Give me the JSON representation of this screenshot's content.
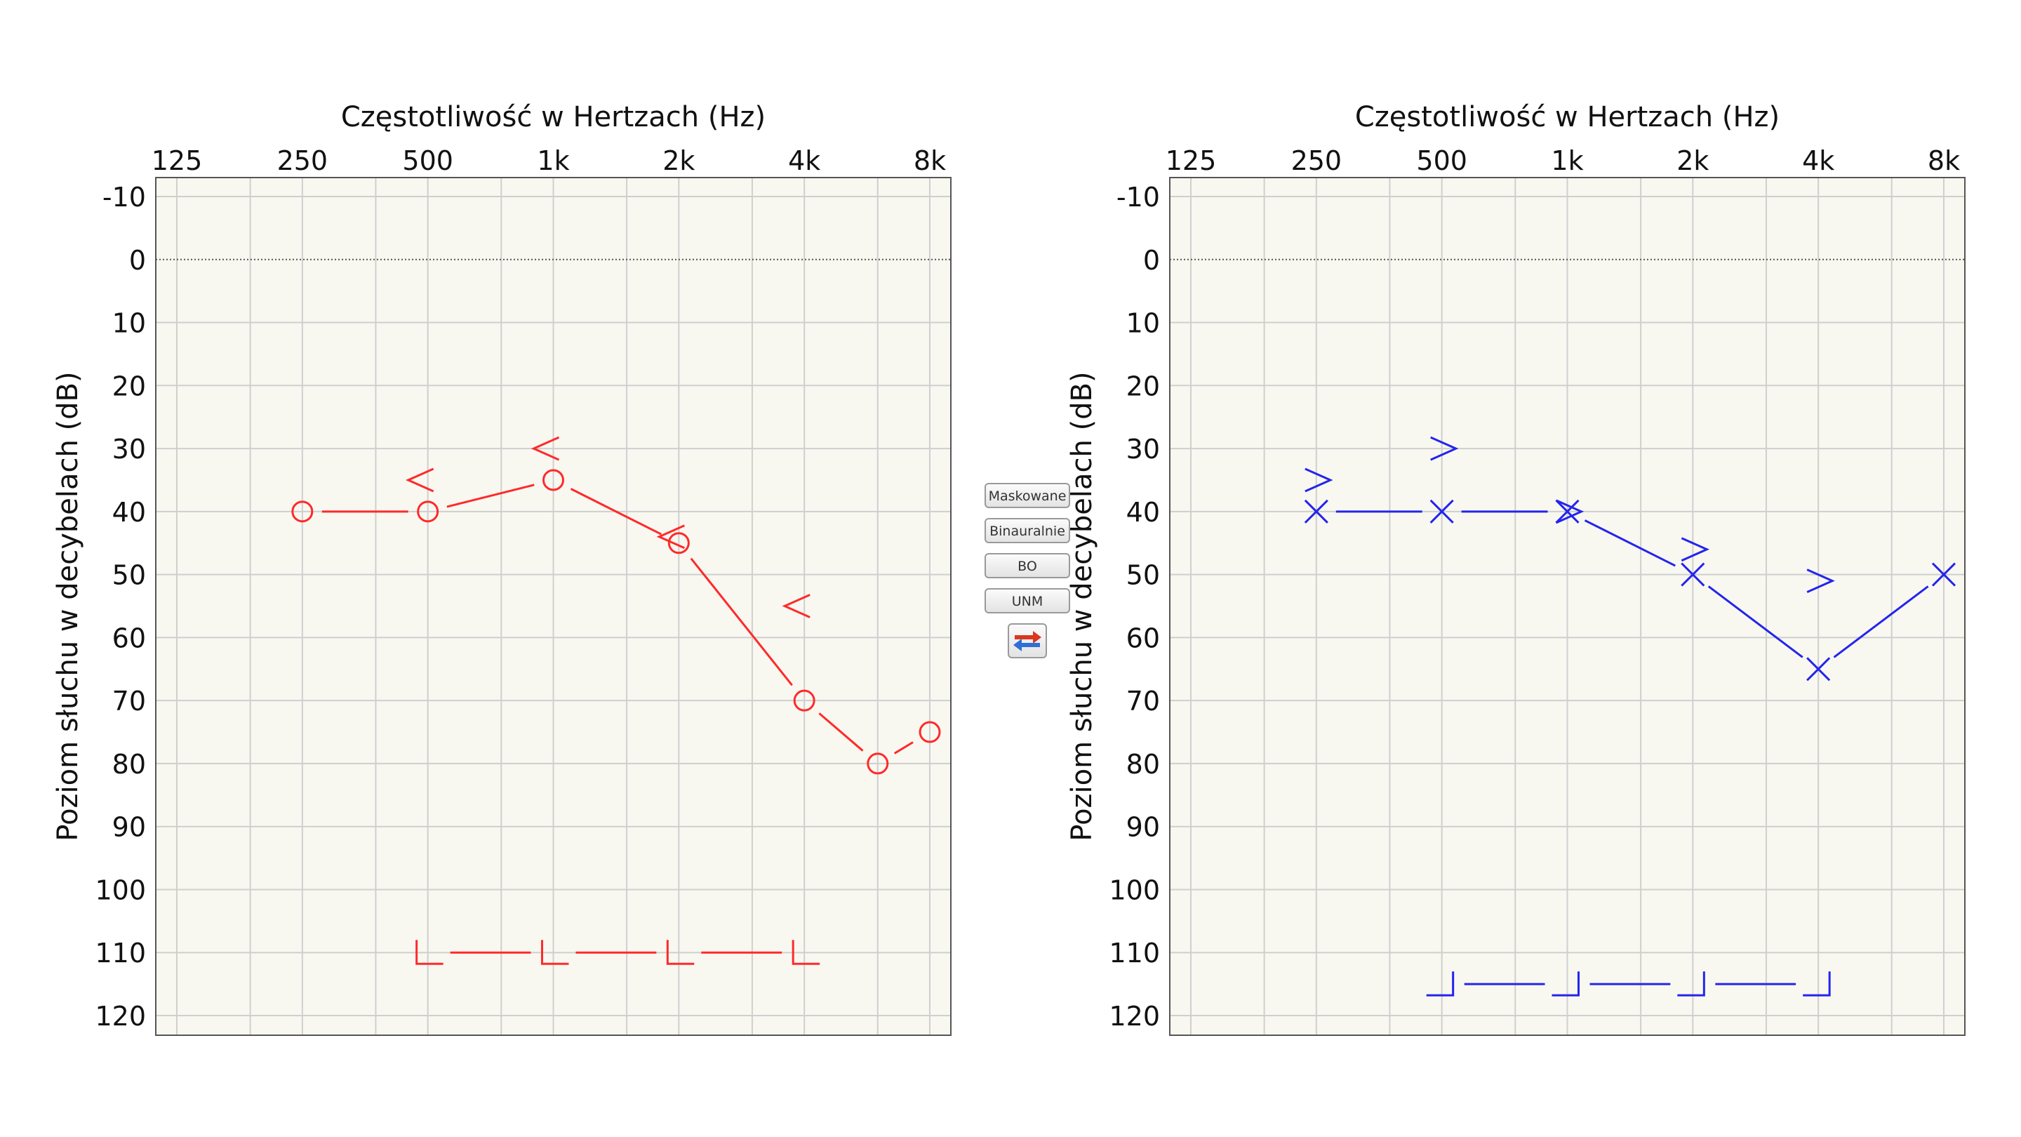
{
  "controls": {
    "masked_label": "Maskowane",
    "binaural_label": "Binauralnie",
    "bo_label": "BO",
    "unm_label": "UNM",
    "swap_colors": [
      "#d9381e",
      "#2f6fd6"
    ]
  },
  "chart_data": [
    {
      "type": "line",
      "side": "left",
      "color": "#ff2a2a",
      "xlabel": "Częstotliwość w Hertzach (Hz)",
      "ylabel": "Poziom słuchu w decybelach (dB)",
      "x_ticks": [
        125,
        250,
        500,
        1000,
        2000,
        4000,
        8000
      ],
      "x_tick_labels": [
        "125",
        "250",
        "500",
        "1k",
        "2k",
        "4k",
        "8k"
      ],
      "x_scale": "log2",
      "y_ticks": [
        -10,
        0,
        10,
        20,
        30,
        40,
        50,
        60,
        70,
        80,
        90,
        100,
        110,
        120
      ],
      "ylim": [
        120,
        -10
      ],
      "y_inverted": true,
      "reference_line": 0,
      "grid": true,
      "series": [
        {
          "marker": "circle",
          "connected": true,
          "points": [
            {
              "x": 250,
              "y": 40
            },
            {
              "x": 500,
              "y": 40
            },
            {
              "x": 1000,
              "y": 35
            },
            {
              "x": 2000,
              "y": 45
            },
            {
              "x": 4000,
              "y": 70
            },
            {
              "x": 6000,
              "y": 80
            },
            {
              "x": 8000,
              "y": 75
            }
          ]
        },
        {
          "marker": "chevron-left",
          "connected": false,
          "points": [
            {
              "x": 500,
              "y": 35
            },
            {
              "x": 1000,
              "y": 30
            },
            {
              "x": 2000,
              "y": 44
            },
            {
              "x": 4000,
              "y": 55
            }
          ]
        },
        {
          "marker": "bracket-left",
          "connected": true,
          "points": [
            {
              "x": 500,
              "y": 110
            },
            {
              "x": 1000,
              "y": 110
            },
            {
              "x": 2000,
              "y": 110
            },
            {
              "x": 4000,
              "y": 110
            }
          ]
        }
      ]
    },
    {
      "type": "line",
      "side": "right",
      "color": "#2424ee",
      "xlabel": "Częstotliwość w Hertzach (Hz)",
      "ylabel": "Poziom słuchu w decybelach (dB)",
      "x_ticks": [
        125,
        250,
        500,
        1000,
        2000,
        4000,
        8000
      ],
      "x_tick_labels": [
        "125",
        "250",
        "500",
        "1k",
        "2k",
        "4k",
        "8k"
      ],
      "x_scale": "log2",
      "y_ticks": [
        -10,
        0,
        10,
        20,
        30,
        40,
        50,
        60,
        70,
        80,
        90,
        100,
        110,
        120
      ],
      "ylim": [
        120,
        -10
      ],
      "y_inverted": true,
      "reference_line": 0,
      "grid": true,
      "series": [
        {
          "marker": "cross",
          "connected": true,
          "points": [
            {
              "x": 250,
              "y": 40
            },
            {
              "x": 500,
              "y": 40
            },
            {
              "x": 1000,
              "y": 40
            },
            {
              "x": 2000,
              "y": 50
            },
            {
              "x": 4000,
              "y": 65
            },
            {
              "x": 8000,
              "y": 50
            }
          ]
        },
        {
          "marker": "chevron-right",
          "connected": false,
          "points": [
            {
              "x": 250,
              "y": 35
            },
            {
              "x": 500,
              "y": 30
            },
            {
              "x": 1000,
              "y": 40
            },
            {
              "x": 2000,
              "y": 46
            },
            {
              "x": 4000,
              "y": 51
            }
          ]
        },
        {
          "marker": "bracket-right",
          "connected": true,
          "points": [
            {
              "x": 500,
              "y": 115
            },
            {
              "x": 1000,
              "y": 115
            },
            {
              "x": 2000,
              "y": 115
            },
            {
              "x": 4000,
              "y": 115
            }
          ]
        }
      ]
    }
  ]
}
